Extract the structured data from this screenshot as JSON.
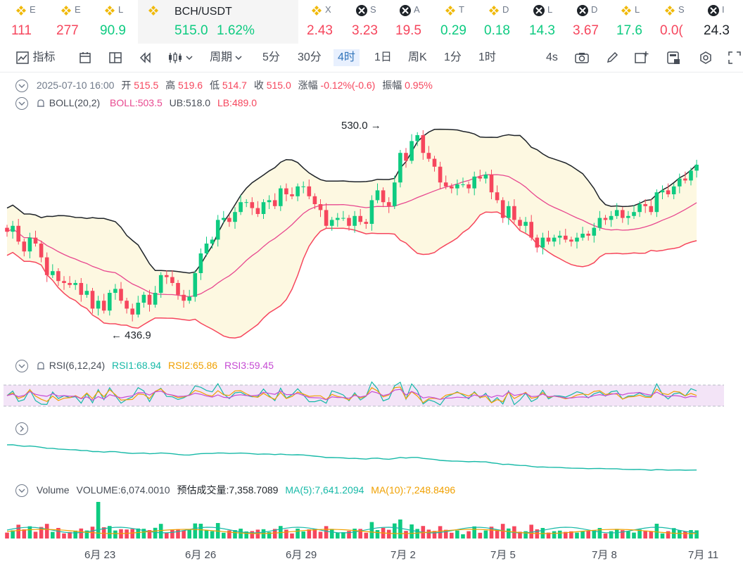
{
  "tickers": [
    {
      "name": "E",
      "value": "111",
      "dir": "down",
      "icon": "bnb-icon"
    },
    {
      "name": "E",
      "value": "277",
      "dir": "down",
      "icon": "bnb-icon"
    },
    {
      "name": "L",
      "value": "90.9",
      "dir": "up",
      "icon": "bnb-icon"
    },
    {
      "name": "BCH/USDT",
      "value": "515.0",
      "change": "1.62%",
      "dir": "up",
      "icon": "bnb-icon"
    },
    {
      "name": "X",
      "value": "2.43",
      "dir": "down",
      "icon": "bnb-icon"
    },
    {
      "name": "S",
      "value": "3.23",
      "dir": "down",
      "icon": "xrp-icon"
    },
    {
      "name": "A",
      "value": "19.5",
      "dir": "down",
      "icon": "xrp-icon"
    },
    {
      "name": "T",
      "value": "0.29",
      "dir": "up",
      "icon": "bnb-icon"
    },
    {
      "name": "D",
      "value": "0.18",
      "dir": "up",
      "icon": "bnb-icon"
    },
    {
      "name": "L",
      "value": "14.3",
      "dir": "up",
      "icon": "xrp-icon"
    },
    {
      "name": "D",
      "value": "3.67",
      "dir": "down",
      "icon": "xrp-icon"
    },
    {
      "name": "L",
      "value": "17.6",
      "dir": "up",
      "icon": "bnb-icon"
    },
    {
      "name": "S",
      "value": "0.0(",
      "dir": "down",
      "icon": "bnb-icon"
    },
    {
      "name": "I",
      "value": "24.3",
      "dir": "neutral",
      "icon": "xrp-icon"
    }
  ],
  "toolbar": {
    "indicators": "指标",
    "period": "周期",
    "intervals": [
      "5分",
      "30分",
      "4时",
      "1日",
      "周K",
      "1分",
      "1时"
    ],
    "active_interval": "4时",
    "refresh": "4s"
  },
  "ohlc": {
    "datetime": "2025-07-10 16:00",
    "open_label": "开",
    "open": "515.5",
    "high_label": "高",
    "high": "519.6",
    "low_label": "低",
    "low": "514.7",
    "close_label": "收",
    "close": "515.0",
    "change_label": "涨幅",
    "change": "-0.12%(-0.6)",
    "amp_label": "振幅",
    "amp": "0.95%"
  },
  "boll": {
    "name": "BOLL(20,2)",
    "boll": "BOLL:503.5",
    "ub": "UB:518.0",
    "lb": "LB:489.0"
  },
  "rsi": {
    "name": "RSI(6,12,24)",
    "rsi1": "RSI1:68.94",
    "rsi2": "RSI2:65.86",
    "rsi3": "RSI3:59.45"
  },
  "volume": {
    "name": "Volume",
    "vol": "VOLUME:6,074.0010",
    "est": "预估成交量:7,358.7089",
    "ma5": "MA(5):7,641.2094",
    "ma10": "MA(10):7,248.8496"
  },
  "markers": {
    "high": "530.0",
    "low": "436.9"
  },
  "xaxis": [
    "6月 23",
    "6月 26",
    "6月 29",
    "7月 2",
    "7月 5",
    "7月 8",
    "7月 11"
  ],
  "colors": {
    "up": "#0ecb81",
    "down": "#f6465d",
    "boll_mid": "#e8488f",
    "accent": "#3375bb"
  },
  "chart_data": {
    "type": "candlestick",
    "series": [
      {
        "name": "BCH/USDT 4h",
        "values_close": [
          481,
          484,
          476,
          471,
          478,
          475,
          468,
          459,
          461,
          456,
          455,
          454,
          455,
          449,
          451,
          442,
          446,
          441,
          450,
          452,
          446,
          442,
          439,
          445,
          449,
          444,
          450,
          459,
          458,
          455,
          449,
          446,
          448,
          460,
          470,
          475,
          477,
          487,
          488,
          486,
          491,
          496,
          496,
          493,
          490,
          496,
          497,
          494,
          503,
          500,
          499,
          504,
          504,
          499,
          495,
          492,
          484,
          487,
          488,
          488,
          484,
          489,
          486,
          485,
          497,
          502,
          496,
          494,
          506,
          521,
          517,
          527,
          530,
          521,
          518,
          514,
          506,
          504,
          503,
          505,
          505,
          503,
          509,
          508,
          510,
          501,
          497,
          488,
          494,
          487,
          484,
          486,
          478,
          473,
          478,
          476,
          478,
          479,
          477,
          476,
          478,
          480,
          479,
          483,
          488,
          487,
          489,
          492,
          488,
          489,
          491,
          495,
          494,
          491,
          501,
          502,
          500,
          504,
          508,
          507,
          512,
          515
        ]
      }
    ],
    "boll": {
      "ub_final": 518.0,
      "mid_final": 503.5,
      "lb_final": 489.0
    },
    "high_marker": 530.0,
    "low_marker": 436.9,
    "rsi_band": [
      30,
      70
    ],
    "xticks": [
      "6月 23",
      "6月 26",
      "6月 29",
      "7月 2",
      "7月 5",
      "7月 8",
      "7月 11"
    ]
  }
}
